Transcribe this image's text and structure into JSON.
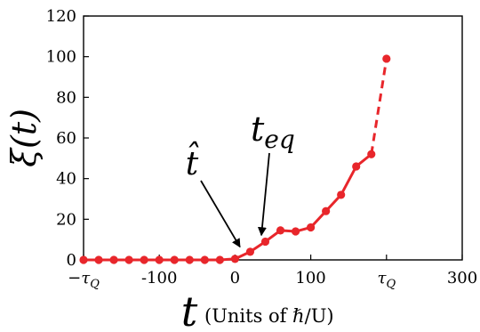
{
  "chart_data": {
    "type": "line",
    "xlim": [
      -200,
      300
    ],
    "ylim": [
      0,
      120
    ],
    "x_ticks": [
      {
        "value": -200,
        "label": "−τ",
        "sub": "Q"
      },
      {
        "value": -100,
        "label": "-100",
        "sub": ""
      },
      {
        "value": 0,
        "label": "0",
        "sub": ""
      },
      {
        "value": 100,
        "label": "100",
        "sub": ""
      },
      {
        "value": 200,
        "label": "τ",
        "sub": "Q"
      },
      {
        "value": 300,
        "label": "300",
        "sub": ""
      }
    ],
    "y_ticks": [
      {
        "value": 0,
        "label": "0"
      },
      {
        "value": 20,
        "label": "20"
      },
      {
        "value": 40,
        "label": "40"
      },
      {
        "value": 60,
        "label": "60"
      },
      {
        "value": 80,
        "label": "80"
      },
      {
        "value": 100,
        "label": "100"
      },
      {
        "value": 120,
        "label": "120"
      }
    ],
    "xlabel": {
      "symbol": "t",
      "units": "(Units of ℏ/U)"
    },
    "ylabel": "ξ(t)",
    "series": [
      {
        "color": "#e8262b",
        "x": [
          -200,
          -180,
          -160,
          -140,
          -120,
          -100,
          -80,
          -60,
          -40,
          -20,
          0,
          20,
          40,
          60,
          80,
          100,
          120,
          140,
          160,
          180,
          200
        ],
        "y": [
          0,
          0,
          0,
          0,
          0,
          0,
          0,
          0,
          0,
          0,
          0.5,
          4,
          9,
          14.5,
          14,
          16,
          24,
          32,
          46,
          52,
          99
        ]
      }
    ],
    "dashed_from_index": 19,
    "annotations": [
      {
        "label": "t̂",
        "target": [
          10,
          5.5
        ]
      },
      {
        "label": "t",
        "sub": "eq",
        "target": [
          36,
          9.5
        ]
      }
    ],
    "grid": false
  }
}
